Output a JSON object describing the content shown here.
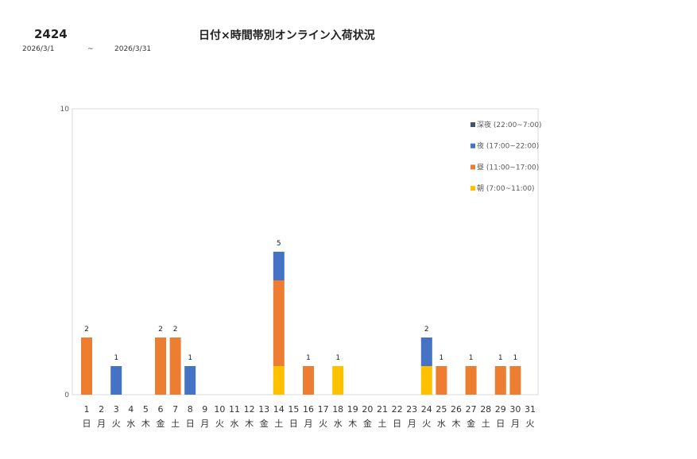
{
  "header": {
    "code": "2424",
    "title": "日付×時間帯別オンライン入荷状況",
    "date_from": "2026/3/1",
    "tilde": "~",
    "date_to": "2026/3/31"
  },
  "chart_data": {
    "type": "bar",
    "stacked": true,
    "ylim": [
      0,
      10
    ],
    "yticks": [
      "0",
      "10"
    ],
    "grid": false,
    "legend_position": "top-right",
    "categories": [
      "1",
      "2",
      "3",
      "4",
      "5",
      "6",
      "7",
      "8",
      "9",
      "10",
      "11",
      "12",
      "13",
      "14",
      "15",
      "16",
      "17",
      "18",
      "19",
      "20",
      "21",
      "22",
      "23",
      "24",
      "25",
      "26",
      "27",
      "28",
      "29",
      "30",
      "31"
    ],
    "weekdays": [
      "日",
      "月",
      "火",
      "水",
      "木",
      "金",
      "土",
      "日",
      "月",
      "火",
      "水",
      "木",
      "金",
      "土",
      "日",
      "月",
      "火",
      "水",
      "木",
      "金",
      "土",
      "日",
      "月",
      "火",
      "水",
      "木",
      "金",
      "土",
      "日",
      "月",
      "火"
    ],
    "series": [
      {
        "name": "朝 (7:00~11:00)",
        "color": "#FFC000",
        "values": [
          0,
          0,
          0,
          0,
          0,
          0,
          0,
          0,
          0,
          0,
          0,
          0,
          0,
          1,
          0,
          0,
          0,
          1,
          0,
          0,
          0,
          0,
          0,
          1,
          0,
          0,
          0,
          0,
          0,
          0,
          0
        ]
      },
      {
        "name": "昼 (11:00~17:00)",
        "color": "#ED7D31",
        "values": [
          2,
          0,
          0,
          0,
          0,
          2,
          2,
          0,
          0,
          0,
          0,
          0,
          0,
          3,
          0,
          1,
          0,
          0,
          0,
          0,
          0,
          0,
          0,
          0,
          1,
          0,
          1,
          0,
          1,
          1,
          0
        ]
      },
      {
        "name": "夜 (17:00~22:00)",
        "color": "#4472C4",
        "values": [
          0,
          0,
          1,
          0,
          0,
          0,
          0,
          1,
          0,
          0,
          0,
          0,
          0,
          1,
          0,
          0,
          0,
          0,
          0,
          0,
          0,
          0,
          0,
          1,
          0,
          0,
          0,
          0,
          0,
          0,
          0
        ]
      },
      {
        "name": "深夜 (22:00~7:00)",
        "color": "#44546A",
        "values": [
          0,
          0,
          0,
          0,
          0,
          0,
          0,
          0,
          0,
          0,
          0,
          0,
          0,
          0,
          0,
          0,
          0,
          0,
          0,
          0,
          0,
          0,
          0,
          0,
          0,
          0,
          0,
          0,
          0,
          0,
          0
        ]
      }
    ],
    "totals": [
      2,
      null,
      1,
      null,
      null,
      2,
      2,
      1,
      null,
      null,
      null,
      null,
      null,
      5,
      null,
      1,
      null,
      1,
      null,
      null,
      null,
      null,
      null,
      2,
      1,
      null,
      1,
      null,
      1,
      1,
      null
    ]
  }
}
